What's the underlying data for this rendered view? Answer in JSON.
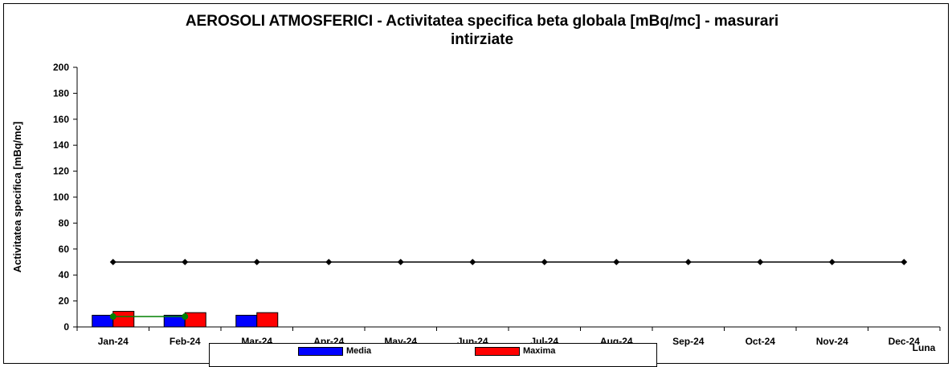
{
  "chart_data": {
    "type": "bar",
    "title_line1": "AEROSOLI  ATMOSFERICI - Activitatea specifica beta globala [mBq/mc] - masurari",
    "title_line2": "intirziate",
    "ylabel": "Activitatea specifica [mBq/mc]",
    "xlabel": "Luna",
    "ylim": [
      0,
      200
    ],
    "y_ticks": [
      "0",
      "20",
      "40",
      "60",
      "80",
      "100",
      "120",
      "140",
      "160",
      "180",
      "200"
    ],
    "categories": [
      "Jan-24",
      "Feb-24",
      "Mar-24",
      "Apr-24",
      "May-24",
      "Jun-24",
      "Jul-24",
      "Aug-24",
      "Sep-24",
      "Oct-24",
      "Nov-24",
      "Dec-24"
    ],
    "series": [
      {
        "name": "Media",
        "type": "bar",
        "color": "#0000ff",
        "values": [
          9,
          9,
          9,
          null,
          null,
          null,
          null,
          null,
          null,
          null,
          null,
          null
        ]
      },
      {
        "name": "Maxima",
        "type": "bar",
        "color": "#ff0000",
        "values": [
          12,
          11,
          11,
          null,
          null,
          null,
          null,
          null,
          null,
          null,
          null,
          null
        ]
      },
      {
        "type": "line",
        "color": "#008000",
        "values": [
          8,
          8,
          null,
          null,
          null,
          null,
          null,
          null,
          null,
          null,
          null,
          null
        ]
      },
      {
        "type": "line",
        "color": "#000000",
        "values": [
          50,
          50,
          50,
          50,
          50,
          50,
          50,
          50,
          50,
          50,
          50,
          50
        ]
      }
    ],
    "legend_position": "bottom",
    "grid": false
  }
}
